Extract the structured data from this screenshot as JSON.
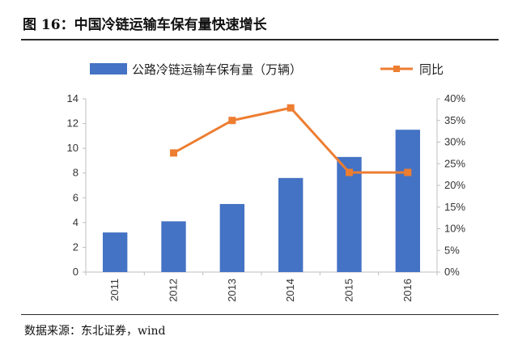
{
  "figure": {
    "title": "图 16：中国冷链运输车保有量快速增长",
    "source": "数据来源：东北证券，wind"
  },
  "colors": {
    "bar": "#4472C4",
    "line": "#ED7D31",
    "axis": "#bfbfbf"
  },
  "chart_data": {
    "type": "bar",
    "categories": [
      "2011",
      "2012",
      "2013",
      "2014",
      "2015",
      "2016"
    ],
    "series": [
      {
        "name": "公路冷链运输车保有量（万辆）",
        "type": "bar",
        "axis": "left",
        "values": [
          3.2,
          4.1,
          5.5,
          7.6,
          9.3,
          11.5
        ]
      },
      {
        "name": "同比",
        "type": "line",
        "axis": "right",
        "values": [
          null,
          27.5,
          35.0,
          37.9,
          23.0,
          23.0
        ]
      }
    ],
    "y_left": {
      "min": 0,
      "max": 14,
      "step": 2,
      "ticks": [
        "0",
        "2",
        "4",
        "6",
        "8",
        "10",
        "12",
        "14"
      ]
    },
    "y_right": {
      "min": 0,
      "max": 40,
      "step": 5,
      "ticks": [
        "0%",
        "5%",
        "10%",
        "15%",
        "20%",
        "25%",
        "30%",
        "35%",
        "40%"
      ]
    },
    "legend_position": "top",
    "grid": false
  }
}
